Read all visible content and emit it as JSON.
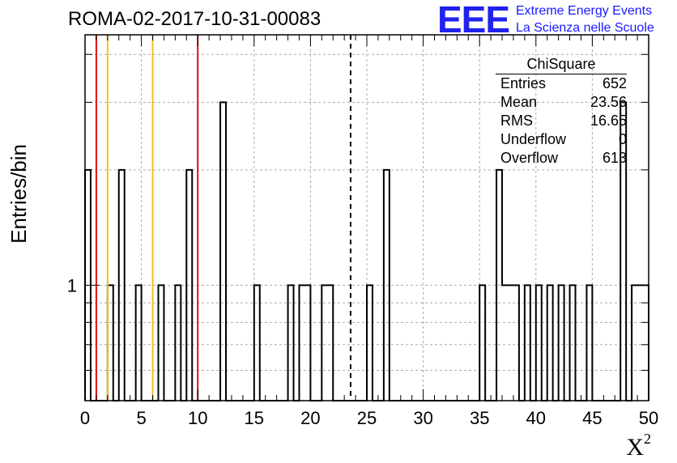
{
  "title": "ROMA-02-2017-10-31-00083",
  "logo": {
    "mark": "EEE",
    "line1": "Extreme Energy Events",
    "line2": "La Scienza nelle Scuole"
  },
  "stats_box": {
    "title": "ChiSquare",
    "rows": [
      {
        "label": "Entries",
        "value": "652"
      },
      {
        "label": "Mean",
        "value": "23.56"
      },
      {
        "label": "RMS",
        "value": "16.65"
      },
      {
        "label": "Underflow",
        "value": "0"
      },
      {
        "label": "Overflow",
        "value": "613"
      }
    ]
  },
  "chart_data": {
    "type": "histogram",
    "title": "ROMA-02-2017-10-31-00083",
    "xlabel": "X",
    "xlabel_superscript": "2",
    "ylabel": "Entries/bin",
    "xlim": [
      0,
      50
    ],
    "ylog": true,
    "ylim": [
      0.5,
      4.5
    ],
    "y_tick_labels": [
      "1"
    ],
    "x_ticks": [
      0,
      5,
      10,
      15,
      20,
      25,
      30,
      35,
      40,
      45,
      50
    ],
    "grid": true,
    "bin_width": 0.5,
    "bins": [
      {
        "x": 0.0,
        "count": 2
      },
      {
        "x": 2.0,
        "count": 1
      },
      {
        "x": 3.0,
        "count": 2
      },
      {
        "x": 4.5,
        "count": 1
      },
      {
        "x": 6.5,
        "count": 1
      },
      {
        "x": 8.0,
        "count": 1
      },
      {
        "x": 9.0,
        "count": 2
      },
      {
        "x": 12.0,
        "count": 3
      },
      {
        "x": 15.0,
        "count": 1
      },
      {
        "x": 18.0,
        "count": 1
      },
      {
        "x": 19.0,
        "count": 1
      },
      {
        "x": 19.5,
        "count": 1
      },
      {
        "x": 21.0,
        "count": 1
      },
      {
        "x": 21.5,
        "count": 1
      },
      {
        "x": 25.0,
        "count": 1
      },
      {
        "x": 26.5,
        "count": 2
      },
      {
        "x": 35.0,
        "count": 1
      },
      {
        "x": 36.5,
        "count": 2
      },
      {
        "x": 37.0,
        "count": 1
      },
      {
        "x": 37.5,
        "count": 1
      },
      {
        "x": 38.0,
        "count": 1
      },
      {
        "x": 39.0,
        "count": 1
      },
      {
        "x": 40.0,
        "count": 1
      },
      {
        "x": 41.0,
        "count": 1
      },
      {
        "x": 42.0,
        "count": 1
      },
      {
        "x": 43.0,
        "count": 1
      },
      {
        "x": 44.5,
        "count": 1
      },
      {
        "x": 47.5,
        "count": 3
      },
      {
        "x": 48.5,
        "count": 1
      },
      {
        "x": 49.0,
        "count": 1
      },
      {
        "x": 49.5,
        "count": 1
      }
    ],
    "reference_lines": [
      {
        "x": 1.0,
        "color": "#dd1111",
        "style": "solid"
      },
      {
        "x": 2.0,
        "color": "#f0c020",
        "style": "solid"
      },
      {
        "x": 6.0,
        "color": "#f0c020",
        "style": "solid"
      },
      {
        "x": 10.0,
        "color": "#dd1111",
        "style": "solid"
      },
      {
        "x": 23.56,
        "color": "#000000",
        "style": "dashed"
      }
    ]
  }
}
